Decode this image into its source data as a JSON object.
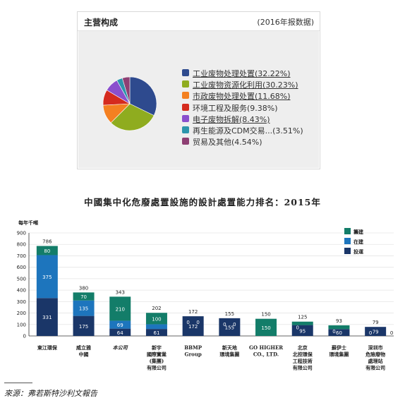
{
  "pie_panel": {
    "title": "主营构成",
    "note": "(2016年报数据)"
  },
  "bar_chart_title": "中國集中化危廢處置設施的設計處置能力排名：2015年",
  "source": "來源：弗若斯特沙利文報告",
  "chart_data": [
    {
      "type": "pie",
      "categories": [
        "工业废物处理处置(32.22%)",
        "工业废物资源化利用(30.23%)",
        "市政废物处理处置(11.68%)",
        "环境工程及服务(9.38%)",
        "电子废物拆解(8.43%)",
        "再生能源及CDM交易...(3.51%)",
        "贸易及其他(4.54%)"
      ],
      "values": [
        32.22,
        30.23,
        11.68,
        9.38,
        8.43,
        3.51,
        4.54
      ],
      "colors": [
        "#2e4a8e",
        "#8fac1f",
        "#f48021",
        "#d52b1e",
        "#8a4fcd",
        "#2d95ac",
        "#8e3f73"
      ],
      "underlined": [
        0,
        1,
        2,
        4
      ],
      "legend": "right"
    },
    {
      "type": "bar",
      "stacked": true,
      "ylabel": "每年千噸",
      "ylim": [
        0,
        900
      ],
      "yticks": [
        0,
        100,
        200,
        300,
        400,
        500,
        600,
        700,
        800,
        900
      ],
      "categories": [
        "東江環保",
        "威立雅\n中國",
        "本公司",
        "新宇\n國際實業\n(集團)\n有限公司",
        "BBMP\nGroup",
        "新天地\n環境集團",
        "GO HIGHER\nCO., LTD.",
        "北京\n北控環保\n工程技術\n有限公司",
        "蘇伊士\n環境集團",
        "深圳市\n危險廢物\n處理站\n有限公司"
      ],
      "italic_category_index": 2,
      "series": [
        {
          "name": "投運",
          "color": "#1a3668",
          "values": [
            331,
            175,
            64,
            61,
            172,
            155,
            0,
            95,
            60,
            79
          ]
        },
        {
          "name": "在建",
          "color": "#1d75bd",
          "values": [
            375,
            135,
            69,
            41,
            0,
            0,
            0,
            0,
            0,
            0
          ]
        },
        {
          "name": "籌建",
          "color": "#137d69",
          "values": [
            80,
            70,
            210,
            100,
            0,
            0,
            150,
            30,
            33,
            0
          ]
        }
      ],
      "value_labels": [
        [
          "331",
          "375",
          "80"
        ],
        [
          "175",
          "135",
          "70"
        ],
        [
          "64",
          "69",
          "210"
        ],
        [
          "61",
          "41",
          "100"
        ],
        [
          "172",
          "0",
          "0"
        ],
        [
          "155",
          "0",
          "0"
        ],
        [
          "0",
          "0",
          "150"
        ],
        [
          "95",
          "0",
          "30"
        ],
        [
          "60",
          "0",
          "33"
        ],
        [
          "79",
          "0",
          "0"
        ]
      ],
      "totals": [
        "786",
        "380",
        "343",
        "202",
        "172",
        "155",
        "150",
        "125",
        "93",
        "79"
      ],
      "legend": "top-right"
    }
  ]
}
